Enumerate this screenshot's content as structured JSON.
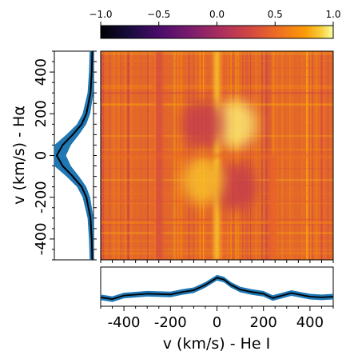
{
  "chart_data": [
    {
      "type": "heatmap",
      "role": "colorbar",
      "colormap": "inferno",
      "vmin": -1.0,
      "vmax": 1.0,
      "ticks": [
        -1.0,
        -0.5,
        0.0,
        0.5,
        1.0
      ],
      "tick_labels": [
        "−1.0",
        "−0.5",
        "0.0",
        "0.5",
        "1.0"
      ],
      "orientation": "horizontal",
      "position": "top"
    },
    {
      "type": "heatmap",
      "role": "correlation-map",
      "colormap": "inferno",
      "x_range": [
        -500,
        500
      ],
      "y_range": [
        -500,
        500
      ],
      "features": [
        {
          "x": -250,
          "y_from": -500,
          "y_to": 500,
          "value": 0.3,
          "kind": "column"
        },
        {
          "x": 0,
          "y_from": -500,
          "y_to": 500,
          "value": 0.85,
          "kind": "column"
        },
        {
          "x": 240,
          "y_from": -500,
          "y_to": 0,
          "value": 0.45,
          "kind": "column"
        },
        {
          "x": 80,
          "y": 150,
          "value": 0.95,
          "kind": "blob"
        },
        {
          "x": -60,
          "y": 150,
          "value": 0.2,
          "kind": "blob"
        },
        {
          "x": 80,
          "y": -150,
          "value": 0.2,
          "kind": "blob"
        },
        {
          "x": -60,
          "y": -120,
          "value": 0.85,
          "kind": "blob"
        },
        {
          "x": 0,
          "y": 0,
          "value": 0.45,
          "kind": "band"
        }
      ]
    },
    {
      "type": "line",
      "role": "h-alpha-profile",
      "orientation": "vertical",
      "ylabel": "v (km/s) - Hα",
      "ylim": [
        -500,
        500
      ],
      "yticks": [
        -400,
        -200,
        0,
        200,
        400
      ],
      "ytick_labels": [
        "-400",
        "-200",
        "0",
        "200",
        "400"
      ],
      "series": [
        {
          "y": [
            -500,
            -400,
            -300,
            -200,
            -150,
            -100,
            -50,
            0,
            50,
            100,
            150,
            200,
            300,
            400,
            500
          ],
          "values": [
            0.02,
            0.03,
            0.05,
            0.12,
            0.2,
            0.35,
            0.52,
            0.62,
            0.52,
            0.35,
            0.2,
            0.12,
            0.05,
            0.03,
            0.02
          ]
        }
      ]
    },
    {
      "type": "line",
      "role": "he-i-profile",
      "xlabel": "v (km/s) - He I",
      "xlim": [
        -500,
        500
      ],
      "xticks": [
        -400,
        -200,
        0,
        200,
        400
      ],
      "xtick_labels": [
        "-400",
        "-200",
        "0",
        "200",
        "400"
      ],
      "series": [
        {
          "x": [
            -500,
            -450,
            -400,
            -300,
            -200,
            -150,
            -100,
            -50,
            0,
            30,
            60,
            100,
            150,
            200,
            240,
            280,
            320,
            400,
            450,
            500
          ],
          "values": [
            -0.1,
            -0.15,
            -0.05,
            0.0,
            -0.02,
            0.05,
            0.1,
            0.25,
            0.45,
            0.4,
            0.25,
            0.12,
            0.05,
            0.0,
            -0.12,
            -0.05,
            0.02,
            -0.08,
            -0.1,
            -0.08
          ]
        }
      ]
    }
  ]
}
